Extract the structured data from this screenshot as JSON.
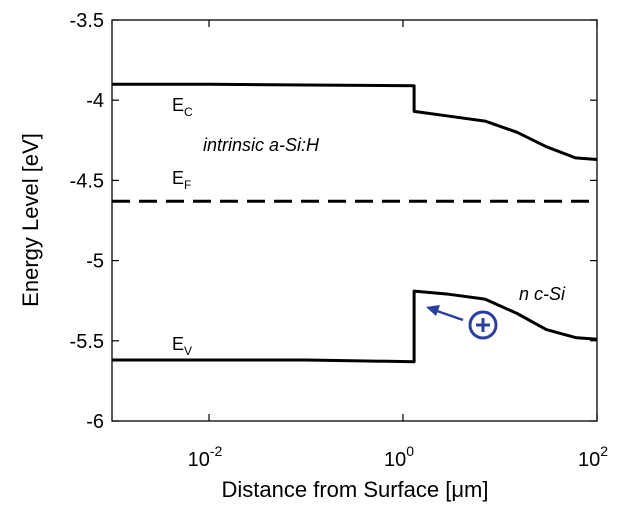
{
  "chart_data": {
    "type": "line",
    "xscale": "log",
    "xlim": [
      0.001,
      100
    ],
    "ylim": [
      -6,
      -3.5
    ],
    "xlabel": "Distance from Surface [μm]",
    "ylabel": "Energy Level [eV]",
    "x_ticks": [
      {
        "value": 0.01,
        "base": "10",
        "exp": "-2"
      },
      {
        "value": 1,
        "base": "10",
        "exp": "0"
      },
      {
        "value": 100,
        "base": "10",
        "exp": "2"
      }
    ],
    "y_ticks": [
      {
        "value": -3.5,
        "label": "-3.5"
      },
      {
        "value": -4,
        "label": "-4"
      },
      {
        "value": -4.5,
        "label": "-4.5"
      },
      {
        "value": -5,
        "label": "-5"
      },
      {
        "value": -5.5,
        "label": "-5.5"
      },
      {
        "value": -6,
        "label": "-6"
      }
    ],
    "series": [
      {
        "key": "Ec",
        "style": "solid",
        "points": [
          [
            0.001,
            -3.9
          ],
          [
            0.01,
            -3.9
          ],
          [
            0.1,
            -3.905
          ],
          [
            1.3,
            -3.91
          ],
          [
            1.3,
            -4.07
          ],
          [
            3,
            -4.1
          ],
          [
            7,
            -4.13
          ],
          [
            15,
            -4.2
          ],
          [
            30,
            -4.29
          ],
          [
            60,
            -4.36
          ],
          [
            100,
            -4.37
          ]
        ]
      },
      {
        "key": "Ef",
        "style": "dashed",
        "points": [
          [
            0.001,
            -4.63
          ],
          [
            100,
            -4.63
          ]
        ]
      },
      {
        "key": "Ev",
        "style": "solid",
        "points": [
          [
            0.001,
            -5.62
          ],
          [
            0.01,
            -5.62
          ],
          [
            0.1,
            -5.62
          ],
          [
            1.3,
            -5.63
          ],
          [
            1.3,
            -5.19
          ],
          [
            3,
            -5.21
          ],
          [
            7,
            -5.24
          ],
          [
            15,
            -5.33
          ],
          [
            30,
            -5.43
          ],
          [
            60,
            -5.48
          ],
          [
            100,
            -5.49
          ]
        ]
      }
    ],
    "annotations": [
      {
        "key": "ec",
        "main": "E",
        "sub": "C"
      },
      {
        "key": "intrinsic",
        "text": "intrinsic a-Si:H"
      },
      {
        "key": "ef",
        "main": "E",
        "sub": "F"
      },
      {
        "key": "ev",
        "main": "E",
        "sub": "V"
      },
      {
        "key": "nc",
        "text": "n c-Si"
      },
      {
        "key": "hole",
        "text": "⊕"
      }
    ],
    "colors": {
      "line": "#000000",
      "hole": "#2b3f9e"
    }
  }
}
